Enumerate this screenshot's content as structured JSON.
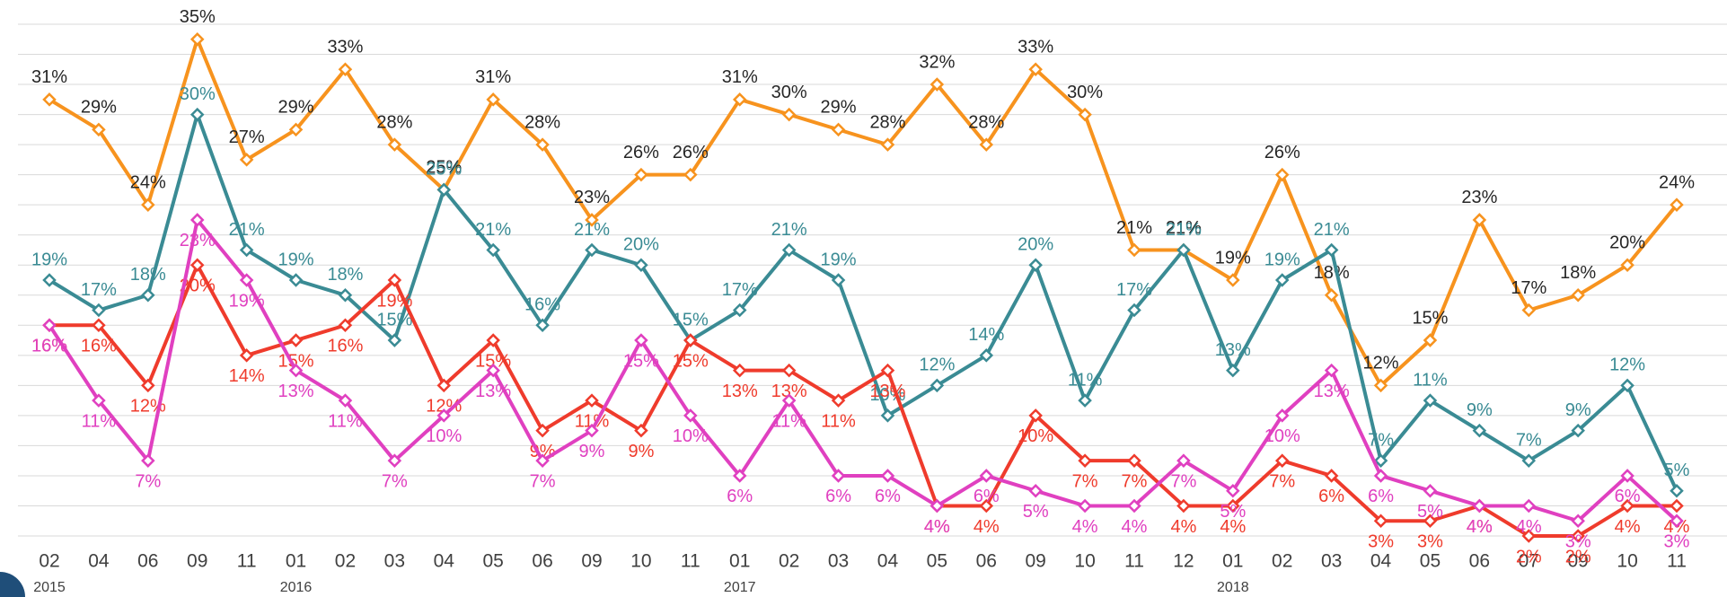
{
  "chart_data": {
    "type": "line",
    "categories": [
      "02",
      "04",
      "06",
      "09",
      "11",
      "01",
      "02",
      "03",
      "04",
      "05",
      "06",
      "09",
      "10",
      "11",
      "01",
      "02",
      "03",
      "04",
      "05",
      "06",
      "09",
      "10",
      "11",
      "12",
      "01",
      "02",
      "03",
      "04",
      "05",
      "06",
      "07",
      "09",
      "10",
      "11"
    ],
    "year_labels": [
      "2015",
      null,
      null,
      null,
      null,
      "2016",
      null,
      null,
      null,
      null,
      null,
      null,
      null,
      null,
      "2017",
      null,
      null,
      null,
      null,
      null,
      null,
      null,
      null,
      null,
      "2018",
      null,
      null,
      null,
      null,
      null,
      null,
      null,
      null,
      null
    ],
    "ylim": [
      2,
      36
    ],
    "yticks": [
      2,
      4,
      6,
      8,
      10,
      12,
      14,
      16,
      18,
      20,
      22,
      24,
      26,
      28,
      30,
      32,
      34,
      36
    ],
    "grid": true,
    "series": [
      {
        "color": "#f7931e",
        "label_color": "#262626",
        "values": [
          31,
          29,
          24,
          35,
          27,
          29,
          33,
          28,
          25,
          31,
          28,
          23,
          26,
          26,
          31,
          30,
          29,
          28,
          32,
          28,
          33,
          30,
          21,
          21,
          19,
          26,
          18,
          12,
          15,
          23,
          17,
          18,
          20,
          24
        ],
        "value_labels": [
          "31%",
          "29%",
          "24%",
          "35%",
          "27%",
          "29%",
          "33%",
          "28%",
          "25%",
          "31%",
          "28%",
          "23%",
          "26%",
          "26%",
          "31%",
          "30%",
          "29%",
          "28%",
          "32%",
          "28%",
          "33%",
          "30%",
          "21%",
          "21%",
          "19%",
          "26%",
          "18%",
          "12%",
          "15%",
          "23%",
          "17%",
          "18%",
          "20%",
          "24%"
        ]
      },
      {
        "color": "#3a8b94",
        "label_color": "#3a8b94",
        "values": [
          19,
          17,
          18,
          30,
          21,
          19,
          18,
          15,
          25,
          21,
          16,
          21,
          20,
          15,
          17,
          21,
          19,
          10,
          12,
          14,
          20,
          11,
          17,
          21,
          13,
          19,
          21,
          7,
          11,
          9,
          7,
          9,
          12,
          5
        ],
        "value_labels": [
          "19%",
          "17%",
          "18%",
          "30%",
          "21%",
          "19%",
          "18%",
          "15%",
          "25%",
          "21%",
          "16%",
          "21%",
          "20%",
          "15%",
          "17%",
          "21%",
          "19%",
          "10%",
          "12%",
          "14%",
          "20%",
          "11%",
          "17%",
          "21%",
          "13%",
          "19%",
          "21%",
          "7%",
          "11%",
          "9%",
          "7%",
          "9%",
          "12%",
          "5%"
        ]
      },
      {
        "color": "#ef3b2c",
        "label_color": "#ef3b2c",
        "values": [
          16,
          16,
          12,
          20,
          14,
          15,
          16,
          19,
          12,
          15,
          9,
          11,
          9,
          15,
          13,
          13,
          11,
          13,
          4,
          4,
          10,
          7,
          7,
          4,
          4,
          7,
          6,
          3,
          3,
          4,
          2,
          2,
          4,
          4
        ],
        "value_labels": [
          "16%",
          "16%",
          "12%",
          "20%",
          "14%",
          "15%",
          "16%",
          "19%",
          "12%",
          "15%",
          "9%",
          "11%",
          "9%",
          "15%",
          "13%",
          "13%",
          "11%",
          "13%",
          "4%",
          "4%",
          "10%",
          "7%",
          "7%",
          "4%",
          "4%",
          "7%",
          "6%",
          "3%",
          "3%",
          "4%",
          "2%",
          "2%",
          "4%",
          "4%"
        ]
      },
      {
        "color": "#e040c0",
        "label_color": "#e040c0",
        "values": [
          16,
          11,
          7,
          23,
          19,
          13,
          11,
          7,
          10,
          13,
          7,
          9,
          15,
          10,
          6,
          11,
          6,
          6,
          4,
          6,
          5,
          4,
          4,
          7,
          5,
          10,
          13,
          6,
          5,
          4,
          4,
          3,
          6,
          3
        ],
        "value_labels": [
          "16%",
          "11%",
          "7%",
          "23%",
          "19%",
          "13%",
          "11%",
          "7%",
          "10%",
          "13%",
          "7%",
          "9%",
          "15%",
          "10%",
          "6%",
          "11%",
          "6%",
          "6%",
          "4%",
          "6%",
          "5%",
          "4%",
          "4%",
          "7%",
          "5%",
          "10%",
          "13%",
          "6%",
          "5%",
          "4%",
          "4%",
          "3%",
          "6%",
          "3%"
        ]
      }
    ]
  }
}
